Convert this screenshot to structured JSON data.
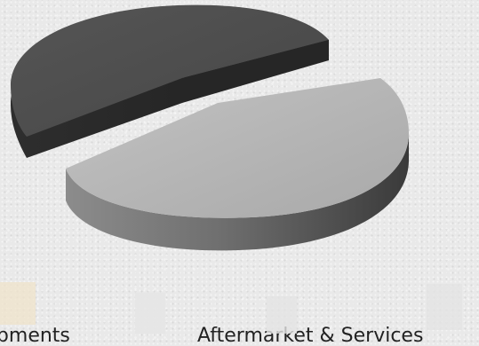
{
  "chart_data": {
    "type": "pie",
    "style": "3d-exploded",
    "series": [
      {
        "name": "",
        "slices": [
          {
            "label": "Equipments",
            "value": 45,
            "color": "#4d4d4d"
          },
          {
            "label": "Aftermarket & Services",
            "value": 55,
            "color": "#b3b3b3"
          }
        ]
      }
    ],
    "legend": {
      "placement": "bottom",
      "entries": [
        "Equipments",
        "Aftermarket & Services"
      ]
    }
  }
}
